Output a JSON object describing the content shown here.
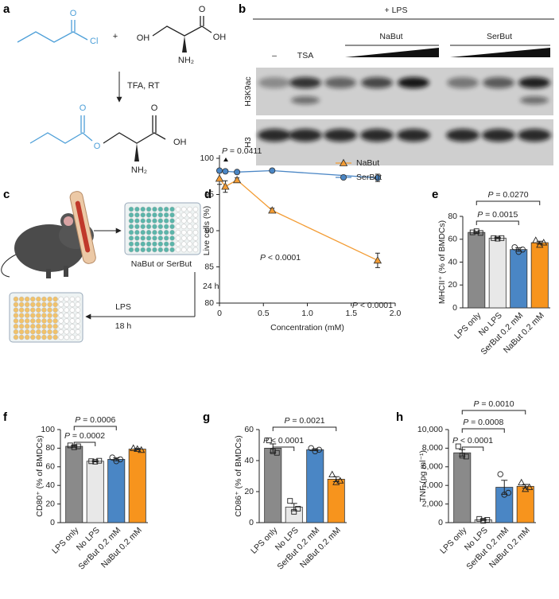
{
  "panel_labels": [
    "a",
    "b",
    "c",
    "d",
    "e",
    "f",
    "g",
    "h"
  ],
  "scheme": {
    "reactant_1": [
      "O",
      "Cl"
    ],
    "plus": "+",
    "reactant_2": [
      "OH",
      "NH₂",
      "O",
      "OH"
    ],
    "conditions": "TFA, RT",
    "product": [
      "O",
      "O",
      "NH₂",
      "O",
      "OH"
    ]
  },
  "blot": {
    "treatment": "+ LPS",
    "groups": [
      "NaBut",
      "SerBut"
    ],
    "lanes": [
      "–",
      "TSA"
    ],
    "rows": [
      "H3K9ac",
      "H3"
    ]
  },
  "workflow": {
    "treatment_1": "NaBut or SerBut",
    "time_1": "24 h",
    "treatment_2": "LPS",
    "time_2": "18 h"
  },
  "chart_data": [
    {
      "type": "line",
      "x": [
        0,
        0.067,
        0.2,
        0.6,
        1.8
      ],
      "series": [
        {
          "name": "NaBut",
          "color": "#f39c34",
          "marker": "triangle",
          "values": [
            97.2,
            96.1,
            97.0,
            92.8,
            85.9
          ],
          "errors": [
            0.8,
            0.8,
            0.3,
            0.3,
            1.0
          ]
        },
        {
          "name": "SerBut",
          "color": "#4a86c5",
          "marker": "circle",
          "values": [
            98.3,
            98.2,
            98.1,
            98.3,
            97.3
          ],
          "errors": [
            0.2,
            0.2,
            0.2,
            0.2,
            0.5
          ]
        }
      ],
      "xlabel": "Concentration (mM)",
      "ylabel": "Live cells (%)",
      "xlim": [
        0,
        2
      ],
      "ylim": [
        80,
        100
      ],
      "xticks": [
        0,
        0.5,
        {
          "value": 1,
          "label": "1.0"
        },
        1.5,
        {
          "value": 2,
          "label": "2.0"
        }
      ],
      "yticks": [
        80,
        85,
        90,
        95,
        100
      ],
      "annotations": [
        "P = 0.0411",
        "P < 0.0001",
        "P < 0.0001"
      ],
      "legend": "upper right"
    },
    {
      "type": "bar",
      "categories": [
        "LPS only",
        "No LPS",
        "SerBut 0.2 mM",
        "NaBut 0.2 mM"
      ],
      "values": [
        66,
        61,
        51,
        57
      ],
      "errors": [
        0.8,
        0.6,
        1.5,
        1.3
      ],
      "points": [
        [
          66,
          67,
          65.5
        ],
        [
          61,
          60.5,
          61
        ],
        [
          53,
          49,
          51
        ],
        [
          59,
          55,
          57
        ]
      ],
      "colors": [
        "#8a8a8a",
        "#e8e8e8",
        "#4a86c5",
        "#f7941d"
      ],
      "markers": [
        "square",
        "square",
        "circle",
        "triangle"
      ],
      "ylabel": "MHCII⁺ (% of BMDCs)",
      "ylim": [
        0,
        80
      ],
      "yticks": [
        0,
        20,
        40,
        60,
        80
      ],
      "comparisons": [
        {
          "label": "P = 0.0015",
          "between": [
            "LPS only",
            "SerBut 0.2 mM"
          ]
        },
        {
          "label": "P = 0.0270",
          "between": [
            "LPS only",
            "NaBut 0.2 mM"
          ]
        }
      ]
    },
    {
      "type": "bar",
      "categories": [
        "LPS only",
        "No LPS",
        "SerBut 0.2 mM",
        "NaBut 0.2 mM"
      ],
      "values": [
        82,
        66,
        68,
        79
      ],
      "errors": [
        1.0,
        0.6,
        1.5,
        0.8
      ],
      "points": [
        [
          83,
          81,
          82
        ],
        [
          66,
          65.5,
          66.5
        ],
        [
          70,
          66,
          68
        ],
        [
          80,
          79,
          78
        ]
      ],
      "colors": [
        "#8a8a8a",
        "#e8e8e8",
        "#4a86c5",
        "#f7941d"
      ],
      "markers": [
        "square",
        "square",
        "circle",
        "triangle"
      ],
      "ylabel": "CD80⁺ (% of BMDCs)",
      "ylim": [
        0,
        100
      ],
      "yticks": [
        0,
        20,
        40,
        60,
        80,
        100
      ],
      "comparisons": [
        {
          "label": "P = 0.0002",
          "between": [
            "LPS only",
            "No LPS"
          ]
        },
        {
          "label": "P = 0.0006",
          "between": [
            "LPS only",
            "SerBut 0.2 mM"
          ]
        }
      ]
    },
    {
      "type": "bar",
      "categories": [
        "LPS only",
        "No LPS",
        "SerBut 0.2 mM",
        "NaBut 0.2 mM"
      ],
      "values": [
        48,
        10,
        47,
        28
      ],
      "errors": [
        2.8,
        2.4,
        0.6,
        1.6
      ],
      "points": [
        [
          53,
          46,
          45
        ],
        [
          14,
          7,
          9
        ],
        [
          48,
          46,
          47
        ],
        [
          31,
          26,
          27
        ]
      ],
      "colors": [
        "#8a8a8a",
        "#e8e8e8",
        "#4a86c5",
        "#f7941d"
      ],
      "markers": [
        "square",
        "square",
        "circle",
        "triangle"
      ],
      "ylabel": "CD86⁺ (% of BMDCs)",
      "ylim": [
        0,
        60
      ],
      "yticks": [
        0,
        20,
        40,
        60
      ],
      "comparisons": [
        {
          "label": "P < 0.0001",
          "between": [
            "LPS only",
            "No LPS"
          ]
        },
        {
          "label": "P = 0.0021",
          "between": [
            "LPS only",
            "NaBut 0.2 mM"
          ]
        }
      ]
    },
    {
      "type": "bar",
      "categories": [
        "LPS only",
        "No LPS",
        "SerBut 0.2 mM",
        "NaBut 0.2 mM"
      ],
      "values": [
        7500,
        300,
        3800,
        3900
      ],
      "errors": [
        350,
        60,
        750,
        200
      ],
      "points": [
        [
          8200,
          7200,
          7100
        ],
        [
          400,
          200,
          300
        ],
        [
          5200,
          3000,
          3200
        ],
        [
          4300,
          3600,
          3800
        ]
      ],
      "colors": [
        "#8a8a8a",
        "#e8e8e8",
        "#4a86c5",
        "#f7941d"
      ],
      "markers": [
        "square",
        "square",
        "circle",
        "triangle"
      ],
      "ylabel": "TNF (pg ml⁻¹)",
      "ylim": [
        0,
        10000
      ],
      "yticks": [
        0,
        {
          "value": 2000,
          "label": "2,000"
        },
        {
          "value": 4000,
          "label": "4,000"
        },
        {
          "value": 6000,
          "label": "6,000"
        },
        {
          "value": 8000,
          "label": "8,000"
        },
        {
          "value": 10000,
          "label": "10,000"
        }
      ],
      "comparisons": [
        {
          "label": "P < 0.0001",
          "between": [
            "LPS only",
            "No LPS"
          ]
        },
        {
          "label": "P = 0.0008",
          "between": [
            "LPS only",
            "SerBut 0.2 mM"
          ]
        },
        {
          "label": "P = 0.0010",
          "between": [
            "LPS only",
            "NaBut 0.2 mM"
          ]
        }
      ]
    }
  ]
}
